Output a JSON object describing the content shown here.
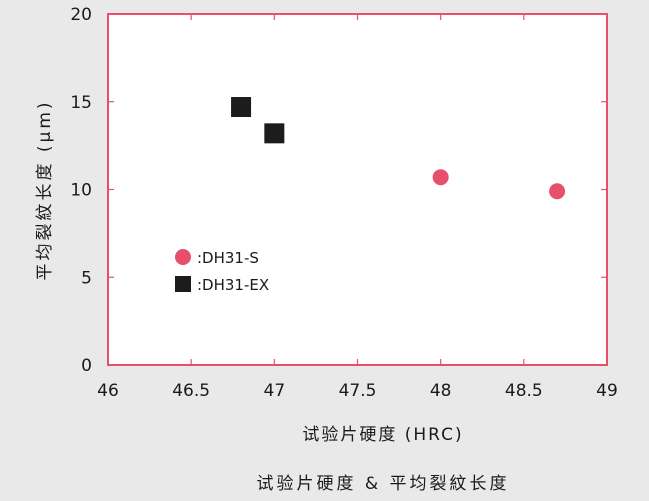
{
  "chart_data": {
    "type": "scatter",
    "title": "试验片硬度 & 平均裂紋长度",
    "xlabel": "试验片硬度 (HRC)",
    "ylabel": "平均裂紋长度 (μm)",
    "xlim": [
      46,
      49
    ],
    "ylim": [
      0,
      20
    ],
    "xticks": [
      46,
      46.5,
      47,
      47.5,
      48,
      48.5,
      49
    ],
    "xtick_labels": [
      "46",
      "46.5",
      "47",
      "47.5",
      "48",
      "48.5",
      "49"
    ],
    "yticks": [
      0,
      5,
      10,
      15,
      20
    ],
    "ytick_labels": [
      "0",
      "5",
      "10",
      "15",
      "20"
    ],
    "grid": false,
    "legend_position": "left-middle",
    "series": [
      {
        "name": ":DH31-S",
        "marker": "circle",
        "color": "#e6506a",
        "points": [
          [
            48.0,
            10.7
          ],
          [
            48.7,
            9.9
          ]
        ]
      },
      {
        "name": ":DH31-EX",
        "marker": "square",
        "color": "#1c1c1c",
        "points": [
          [
            46.8,
            14.7
          ],
          [
            47.0,
            13.2
          ]
        ]
      }
    ],
    "frame_color": "#e6506a"
  }
}
